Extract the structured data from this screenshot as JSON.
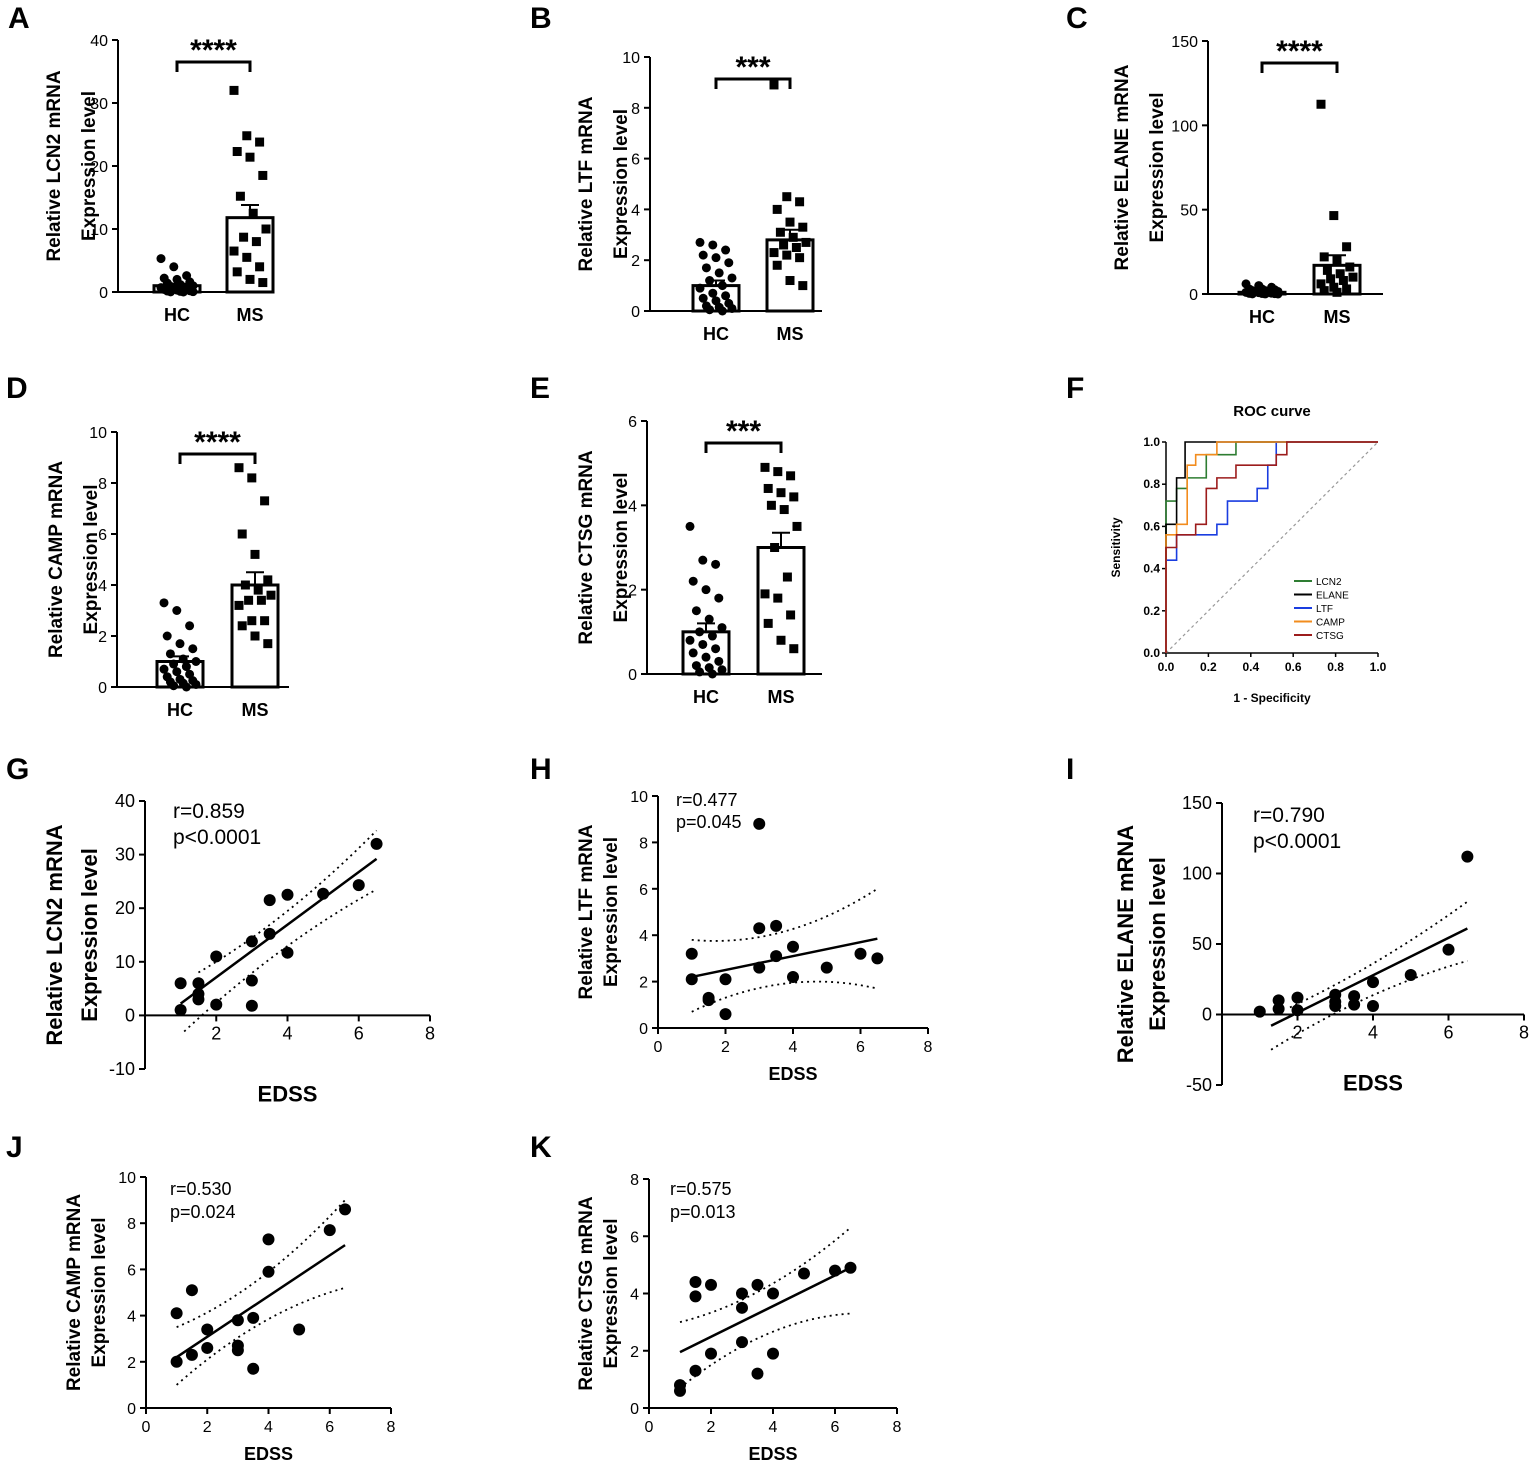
{
  "colors": {
    "axis": "#000000",
    "bar_fill": "#ffffff",
    "diag": "#999999"
  },
  "chart_data": [
    {
      "id": "A",
      "type": "bar",
      "panel_label": "A",
      "ylabel_line1": "Relative LCN2 mRNA",
      "ylabel_line2": "Expression level",
      "categories": [
        "HC",
        "MS"
      ],
      "values": [
        1.0,
        11.8
      ],
      "sem": [
        0.3,
        2.0
      ],
      "ylim": [
        0,
        40
      ],
      "yticks": [
        "0",
        "10",
        "20",
        "30",
        "40"
      ],
      "significance": "****",
      "points": [
        [
          5.3,
          4.0,
          2.6,
          2.2,
          2.0,
          1.6,
          1.4,
          1.2,
          1.0,
          0.9,
          0.8,
          0.7,
          0.6,
          0.5,
          0.4,
          0.3,
          0.2,
          0.15,
          0.1,
          0.05,
          0.02,
          0.0
        ],
        [
          32.0,
          24.8,
          23.8,
          22.3,
          21.4,
          18.5,
          15.2,
          12.5,
          10.0,
          8.7,
          8.0,
          6.5,
          5.5,
          4.0,
          3.2,
          2.0,
          1.5
        ]
      ]
    },
    {
      "id": "B",
      "type": "bar",
      "panel_label": "B",
      "ylabel_line1": "Relative LTF mRNA",
      "ylabel_line2": "Expression level",
      "categories": [
        "HC",
        "MS"
      ],
      "values": [
        1.0,
        2.8
      ],
      "sem": [
        0.2,
        0.4
      ],
      "ylim": [
        0,
        10
      ],
      "yticks": [
        "0",
        "2",
        "4",
        "6",
        "8",
        "10"
      ],
      "significance": "***",
      "points": [
        [
          2.7,
          2.6,
          2.4,
          2.2,
          2.1,
          1.9,
          1.7,
          1.5,
          1.3,
          1.2,
          1.0,
          0.9,
          0.7,
          0.6,
          0.5,
          0.4,
          0.3,
          0.2,
          0.15,
          0.1,
          0.05,
          0.0
        ],
        [
          8.9,
          4.5,
          4.3,
          4.0,
          3.5,
          3.3,
          3.1,
          2.9,
          2.7,
          2.6,
          2.5,
          2.3,
          2.2,
          2.1,
          1.8,
          1.2,
          1.0
        ]
      ]
    },
    {
      "id": "C",
      "type": "bar",
      "panel_label": "C",
      "ylabel_line1": "Relative ELANE mRNA",
      "ylabel_line2": "Expression level",
      "categories": [
        "HC",
        "MS"
      ],
      "values": [
        1.0,
        17.0
      ],
      "sem": [
        0.5,
        6.0
      ],
      "ylim": [
        0,
        150
      ],
      "yticks": [
        "0",
        "50",
        "100",
        "150"
      ],
      "significance": "****",
      "points": [
        [
          6,
          5,
          4,
          3,
          3,
          2.5,
          2,
          2,
          1.5,
          1.5,
          1,
          1,
          0.8,
          0.5,
          0.4,
          0.3,
          0.2,
          0.1,
          0.05,
          0
        ],
        [
          112.5,
          46.5,
          28,
          22,
          20,
          16,
          14,
          12,
          10,
          9,
          8,
          6,
          4,
          3,
          2,
          1
        ]
      ]
    },
    {
      "id": "D",
      "type": "bar",
      "panel_label": "D",
      "ylabel_line1": "Relative CAMP mRNA",
      "ylabel_line2": "Expression level",
      "categories": [
        "HC",
        "MS"
      ],
      "values": [
        1.0,
        4.0
      ],
      "sem": [
        0.2,
        0.5
      ],
      "ylim": [
        0,
        10
      ],
      "yticks": [
        "0",
        "2",
        "4",
        "6",
        "8",
        "10"
      ],
      "significance": "****",
      "points": [
        [
          3.3,
          3.0,
          2.4,
          2.0,
          1.7,
          1.5,
          1.3,
          1.1,
          1.0,
          0.9,
          0.8,
          0.7,
          0.6,
          0.5,
          0.4,
          0.3,
          0.25,
          0.2,
          0.15,
          0.1,
          0.05,
          0.0
        ],
        [
          8.6,
          8.2,
          7.3,
          6.0,
          5.2,
          4.2,
          4.0,
          3.8,
          3.6,
          3.4,
          3.4,
          3.2,
          2.6,
          2.6,
          2.4,
          2.0,
          1.7
        ]
      ]
    },
    {
      "id": "E",
      "type": "bar",
      "panel_label": "E",
      "ylabel_line1": "Relative CTSG mRNA",
      "ylabel_line2": "Expression level",
      "categories": [
        "HC",
        "MS"
      ],
      "values": [
        1.0,
        3.0
      ],
      "sem": [
        0.2,
        0.35
      ],
      "ylim": [
        0,
        6
      ],
      "yticks": [
        "0",
        "2",
        "4",
        "6"
      ],
      "significance": "***",
      "points": [
        [
          3.5,
          2.7,
          2.6,
          2.2,
          2.0,
          1.8,
          1.5,
          1.3,
          1.1,
          1.0,
          0.9,
          0.8,
          0.7,
          0.6,
          0.5,
          0.4,
          0.3,
          0.2,
          0.15,
          0.1,
          0.05,
          0.0
        ],
        [
          4.9,
          4.8,
          4.7,
          4.4,
          4.3,
          4.2,
          4.0,
          3.9,
          3.5,
          3.0,
          2.3,
          1.9,
          1.8,
          1.4,
          1.2,
          0.8,
          0.6
        ]
      ]
    },
    {
      "id": "F",
      "type": "line",
      "panel_label": "F",
      "title": "ROC curve",
      "xlabel": "1 - Specificity",
      "ylabel": "Sensitivity",
      "xlim": [
        0,
        1
      ],
      "ylim": [
        0,
        1
      ],
      "xticks": [
        "0.0",
        "0.2",
        "0.4",
        "0.6",
        "0.8",
        "1.0"
      ],
      "yticks": [
        "0.0",
        "0.2",
        "0.4",
        "0.6",
        "0.8",
        "1.0"
      ],
      "series": [
        {
          "name": "LCN2",
          "color": "#2e7d32",
          "x": [
            0,
            0,
            0.05,
            0.05,
            0.1,
            0.1,
            0.19,
            0.19,
            0.33,
            0.33,
            1.0
          ],
          "y": [
            0,
            0.72,
            0.72,
            0.78,
            0.78,
            0.83,
            0.83,
            0.94,
            0.94,
            1.0,
            1.0
          ]
        },
        {
          "name": "ELANE",
          "color": "#000000",
          "x": [
            0,
            0,
            0.05,
            0.05,
            0.09,
            0.09,
            1.0
          ],
          "y": [
            0,
            0.61,
            0.61,
            0.83,
            0.83,
            1.0,
            1.0
          ]
        },
        {
          "name": "LTF",
          "color": "#1a3de0",
          "x": [
            0,
            0,
            0.05,
            0.05,
            0.24,
            0.24,
            0.29,
            0.29,
            0.38,
            0.38,
            0.43,
            0.43,
            0.48,
            0.48,
            0.52,
            0.52,
            1.0
          ],
          "y": [
            0,
            0.44,
            0.44,
            0.56,
            0.56,
            0.61,
            0.61,
            0.72,
            0.72,
            0.72,
            0.72,
            0.78,
            0.78,
            0.89,
            0.89,
            1.0,
            1.0
          ]
        },
        {
          "name": "CAMP",
          "color": "#f28c1e",
          "x": [
            0,
            0,
            0.05,
            0.05,
            0.1,
            0.1,
            0.14,
            0.14,
            0.24,
            0.24,
            1.0
          ],
          "y": [
            0,
            0.56,
            0.56,
            0.61,
            0.61,
            0.89,
            0.89,
            0.94,
            0.94,
            1.0,
            1.0
          ]
        },
        {
          "name": "CTSG",
          "color": "#9c1c1c",
          "x": [
            0,
            0,
            0.05,
            0.05,
            0.14,
            0.14,
            0.19,
            0.19,
            0.24,
            0.24,
            0.33,
            0.33,
            0.52,
            0.52,
            0.57,
            0.57,
            1.0
          ],
          "y": [
            0,
            0.5,
            0.5,
            0.56,
            0.56,
            0.61,
            0.61,
            0.78,
            0.78,
            0.83,
            0.83,
            0.89,
            0.89,
            0.94,
            0.94,
            1.0,
            1.0
          ]
        }
      ]
    },
    {
      "id": "G",
      "type": "scatter",
      "panel_label": "G",
      "ylabel_line1": "Relative LCN2 mRNA",
      "ylabel_line2": "Expression level",
      "xlabel": "EDSS",
      "xlim": [
        0,
        8
      ],
      "ylim": [
        -10,
        40
      ],
      "xticks": [
        "2",
        "4",
        "6",
        "8"
      ],
      "yticks": [
        "-10",
        "0",
        "10",
        "20",
        "30",
        "40"
      ],
      "stat_r": "r=0.859",
      "stat_p": "p<0.0001",
      "fit": [
        [
          1,
          2.2
        ],
        [
          6.5,
          29.2
        ]
      ],
      "ci_upper": [
        [
          1.5,
          8
        ],
        [
          6.5,
          34.5
        ]
      ],
      "ci_lower": [
        [
          1.1,
          -3
        ],
        [
          6.5,
          23.5
        ]
      ],
      "x": [
        1,
        1,
        1.5,
        1.5,
        1.5,
        2,
        2,
        3,
        3,
        3,
        3.5,
        3.5,
        4,
        4,
        5,
        6,
        6.5
      ],
      "y": [
        6,
        1,
        6,
        4,
        3,
        11,
        2,
        13.8,
        6.5,
        1.8,
        21.5,
        15.2,
        22.5,
        11.7,
        22.7,
        24.3,
        32
      ]
    },
    {
      "id": "H",
      "type": "scatter",
      "panel_label": "H",
      "ylabel_line1": "Relative LTF mRNA",
      "ylabel_line2": "Expression level",
      "xlabel": "EDSS",
      "xlim": [
        0,
        8
      ],
      "ylim": [
        0,
        10
      ],
      "xticks": [
        "0",
        "2",
        "4",
        "6",
        "8"
      ],
      "yticks": [
        "0",
        "2",
        "4",
        "6",
        "8",
        "10"
      ],
      "stat_r": "r=0.477",
      "stat_p": "p=0.045",
      "fit": [
        [
          1,
          2.2
        ],
        [
          6.5,
          3.85
        ]
      ],
      "ci_upper": [
        [
          1,
          3.8
        ],
        [
          6.5,
          6
        ]
      ],
      "ci_lower": [
        [
          1,
          0.7
        ],
        [
          6.5,
          1.7
        ]
      ],
      "x": [
        1,
        1,
        1.5,
        1.5,
        2,
        2,
        3,
        3,
        3,
        3.5,
        3.5,
        4,
        4,
        5,
        6,
        6.5
      ],
      "y": [
        3.2,
        2.1,
        1.3,
        1.2,
        0.6,
        2.1,
        8.8,
        4.3,
        2.6,
        4.4,
        3.1,
        3.5,
        2.2,
        2.6,
        3.2,
        3
      ]
    },
    {
      "id": "I",
      "type": "scatter",
      "panel_label": "I",
      "ylabel_line1": "Relative ELANE mRNA",
      "ylabel_line2": "Expression level",
      "xlabel": "EDSS",
      "xlim": [
        0,
        8
      ],
      "ylim": [
        -50,
        150
      ],
      "xticks": [
        "2",
        "4",
        "6",
        "8"
      ],
      "yticks": [
        "-50",
        "0",
        "50",
        "100",
        "150"
      ],
      "stat_r": "r=0.790",
      "stat_p": "p<0.0001",
      "fit": [
        [
          1.3,
          -8
        ],
        [
          6.5,
          61
        ]
      ],
      "ci_upper": [
        [
          1.8,
          5
        ],
        [
          6.5,
          80
        ]
      ],
      "ci_lower": [
        [
          1.3,
          -25
        ],
        [
          6.5,
          38
        ]
      ],
      "x": [
        1,
        1.5,
        1.5,
        2,
        2,
        3,
        3,
        3,
        3.5,
        3.5,
        4,
        4,
        5,
        6,
        6.5
      ],
      "y": [
        2,
        10,
        4,
        12,
        3,
        14,
        9,
        6,
        13,
        7,
        23,
        6,
        28,
        46,
        112
      ]
    },
    {
      "id": "J",
      "type": "scatter",
      "panel_label": "J",
      "ylabel_line1": "Relative CAMP mRNA",
      "ylabel_line2": "Expression level",
      "xlabel": "EDSS",
      "xlim": [
        0,
        8
      ],
      "ylim": [
        0,
        10
      ],
      "xticks": [
        "0",
        "2",
        "4",
        "6",
        "8"
      ],
      "yticks": [
        "0",
        "2",
        "4",
        "6",
        "8",
        "10"
      ],
      "stat_r": "r=0.530",
      "stat_p": "p=0.024",
      "fit": [
        [
          1,
          2.2
        ],
        [
          6.5,
          7.05
        ]
      ],
      "ci_upper": [
        [
          1,
          3.5
        ],
        [
          6.5,
          9
        ]
      ],
      "ci_lower": [
        [
          1,
          1
        ],
        [
          6.5,
          5.2
        ]
      ],
      "x": [
        1,
        1,
        1.5,
        1.5,
        2,
        2,
        3,
        3,
        3,
        3.5,
        3.5,
        4,
        4,
        5,
        6,
        6.5
      ],
      "y": [
        4.1,
        2,
        5.1,
        2.3,
        3.4,
        2.6,
        3.8,
        2.7,
        2.5,
        3.9,
        1.7,
        7.3,
        5.9,
        3.4,
        7.7,
        8.6
      ]
    },
    {
      "id": "K",
      "type": "scatter",
      "panel_label": "K",
      "ylabel_line1": "Relative CTSG mRNA",
      "ylabel_line2": "Expression level",
      "xlabel": "EDSS",
      "xlim": [
        0,
        8
      ],
      "ylim": [
        0,
        8
      ],
      "xticks": [
        "0",
        "2",
        "4",
        "6",
        "8"
      ],
      "yticks": [
        "0",
        "2",
        "4",
        "6",
        "8"
      ],
      "stat_r": "r=0.575",
      "stat_p": "p=0.013",
      "fit": [
        [
          1,
          1.95
        ],
        [
          6.5,
          4.9
        ]
      ],
      "ci_upper": [
        [
          1,
          3
        ],
        [
          6.5,
          6.3
        ]
      ],
      "ci_lower": [
        [
          1,
          0.7
        ],
        [
          6.5,
          3.3
        ]
      ],
      "x": [
        1,
        1,
        1.5,
        1.5,
        1.5,
        2,
        2,
        3,
        3,
        3,
        3.5,
        3.5,
        4,
        4,
        5,
        6,
        6.5
      ],
      "y": [
        0.8,
        0.6,
        4.4,
        3.9,
        1.3,
        4.3,
        1.9,
        4,
        3.5,
        2.3,
        1.2,
        4.3,
        1.9,
        4,
        4.7,
        4.8,
        4.9
      ]
    }
  ]
}
